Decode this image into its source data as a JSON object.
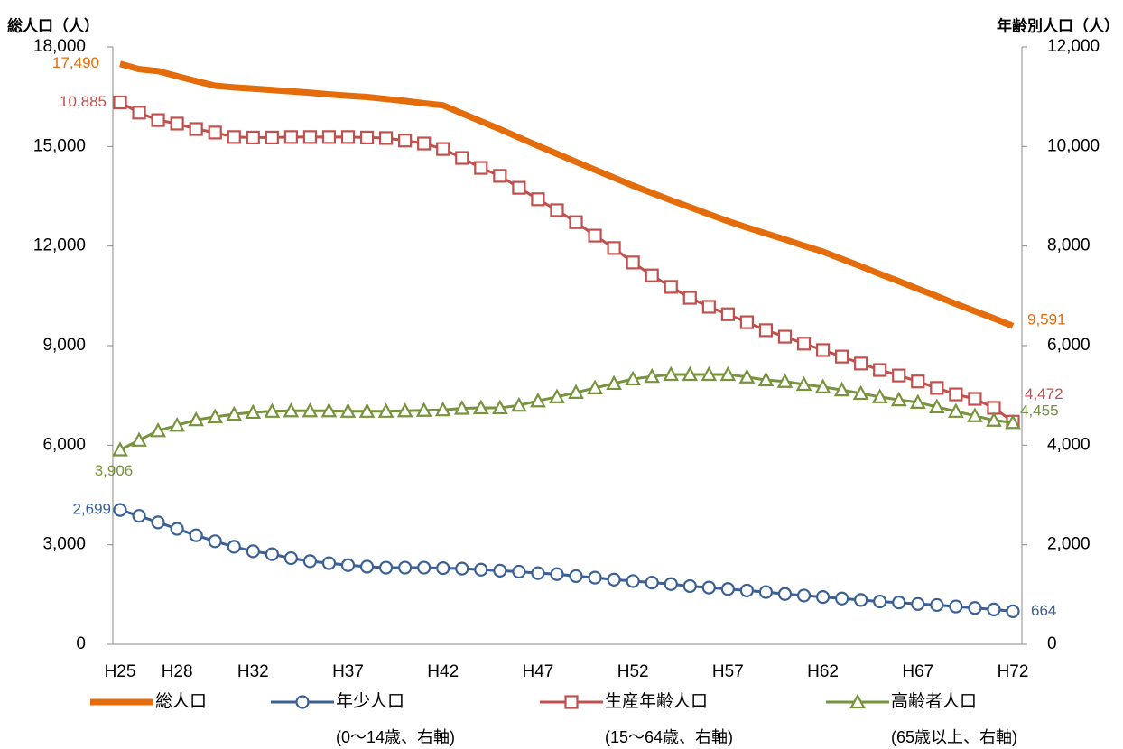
{
  "chart_data": {
    "type": "line",
    "y_label": "総人口（人）",
    "y2_label": "年齢別人口（人）",
    "categories": [
      "H25",
      null,
      null,
      "H28",
      null,
      null,
      null,
      "H32",
      null,
      null,
      null,
      null,
      "H37",
      null,
      null,
      null,
      null,
      "H42",
      null,
      null,
      null,
      null,
      "H47",
      null,
      null,
      null,
      null,
      "H52",
      null,
      null,
      null,
      null,
      "H57",
      null,
      null,
      null,
      null,
      "H62",
      null,
      null,
      null,
      null,
      "H67",
      null,
      null,
      null,
      null,
      "H72"
    ],
    "ylim": [
      0,
      18000
    ],
    "yticks": [
      0,
      {
        "value": 3000,
        "label": "3,000"
      },
      {
        "value": 6000,
        "label": "6,000"
      },
      {
        "value": 9000,
        "label": "9,000"
      },
      {
        "value": 12000,
        "label": "12,000"
      },
      {
        "value": 15000,
        "label": "15,000"
      },
      {
        "value": 18000,
        "label": "18,000"
      }
    ],
    "y2lim": [
      0,
      12000
    ],
    "y2ticks": [
      0,
      {
        "value": 2000,
        "label": "2,000"
      },
      {
        "value": 4000,
        "label": "4,000"
      },
      {
        "value": 6000,
        "label": "6,000"
      },
      {
        "value": 8000,
        "label": "8,000"
      },
      {
        "value": 10000,
        "label": "10,000"
      },
      {
        "value": 12000,
        "label": "12,000"
      }
    ],
    "grid": false,
    "legend": "bottom",
    "series": [
      {
        "name": "総人口",
        "color": "#e46c0a",
        "marker": "none",
        "values": [
          17490,
          17330,
          17270,
          17120,
          16970,
          16830,
          16780,
          16740,
          16700,
          16660,
          16620,
          16570,
          16530,
          16490,
          16430,
          16370,
          16300,
          16240,
          16000,
          15760,
          15520,
          15270,
          15020,
          14780,
          14540,
          14300,
          14060,
          13820,
          13600,
          13380,
          13170,
          12960,
          12750,
          12560,
          12380,
          12200,
          12010,
          11830,
          11610,
          11390,
          11160,
          10940,
          10710,
          10490,
          10260,
          10040,
          9820,
          9591
        ],
        "value_labels": [
          "17,490",
          null,
          null,
          null,
          null,
          null,
          null,
          null,
          null,
          null,
          null,
          null,
          null,
          null,
          null,
          null,
          null,
          null,
          null,
          null,
          null,
          null,
          null,
          null,
          null,
          null,
          null,
          null,
          null,
          null,
          null,
          null,
          null,
          null,
          null,
          null,
          null,
          null,
          null,
          null,
          null,
          null,
          null,
          null,
          null,
          null,
          null,
          "9,591"
        ]
      },
      {
        "name": "年少人口",
        "legend_note": "(0〜14歳、右軸)",
        "color": "#3a6096",
        "marker": "circle",
        "axis": "y2",
        "values": [
          2699,
          2580,
          2450,
          2320,
          2190,
          2070,
          1960,
          1870,
          1810,
          1730,
          1670,
          1630,
          1590,
          1560,
          1540,
          1540,
          1540,
          1530,
          1520,
          1500,
          1480,
          1460,
          1430,
          1410,
          1370,
          1340,
          1300,
          1270,
          1240,
          1210,
          1170,
          1140,
          1110,
          1080,
          1050,
          1010,
          980,
          950,
          920,
          890,
          860,
          840,
          810,
          790,
          760,
          730,
          700,
          664
        ],
        "value_labels": [
          "2,699",
          null,
          null,
          null,
          null,
          null,
          null,
          null,
          null,
          null,
          null,
          null,
          null,
          null,
          null,
          null,
          null,
          null,
          null,
          null,
          null,
          null,
          null,
          null,
          null,
          null,
          null,
          null,
          null,
          null,
          null,
          null,
          null,
          null,
          null,
          null,
          null,
          null,
          null,
          null,
          null,
          null,
          null,
          null,
          null,
          null,
          null,
          "664"
        ]
      },
      {
        "name": "生産年齢人口",
        "legend_note": "(15〜64歳、右軸)",
        "color": "#c0504d",
        "marker": "square",
        "axis": "y2",
        "values": [
          10885,
          10680,
          10530,
          10460,
          10350,
          10280,
          10190,
          10180,
          10180,
          10190,
          10190,
          10190,
          10190,
          10180,
          10170,
          10120,
          10060,
          9950,
          9770,
          9570,
          9410,
          9170,
          8940,
          8720,
          8480,
          8210,
          7960,
          7670,
          7410,
          7180,
          6960,
          6780,
          6630,
          6470,
          6310,
          6180,
          6040,
          5910,
          5780,
          5640,
          5510,
          5400,
          5280,
          5150,
          5020,
          4930,
          4750,
          4472
        ],
        "value_labels": [
          "10,885",
          null,
          null,
          null,
          null,
          null,
          null,
          null,
          null,
          null,
          null,
          null,
          null,
          null,
          null,
          null,
          null,
          null,
          null,
          null,
          null,
          null,
          null,
          null,
          null,
          null,
          null,
          null,
          null,
          null,
          null,
          null,
          null,
          null,
          null,
          null,
          null,
          null,
          null,
          null,
          null,
          null,
          null,
          null,
          null,
          null,
          null,
          "4,472"
        ]
      },
      {
        "name": "高齢者人口",
        "legend_note": "(65歳以上、右軸)",
        "color": "#77933c",
        "marker": "triangle",
        "axis": "y2",
        "values": [
          3906,
          4100,
          4290,
          4400,
          4510,
          4570,
          4620,
          4660,
          4680,
          4690,
          4690,
          4690,
          4680,
          4680,
          4680,
          4690,
          4700,
          4710,
          4740,
          4750,
          4750,
          4800,
          4890,
          4970,
          5060,
          5150,
          5240,
          5330,
          5380,
          5420,
          5420,
          5420,
          5420,
          5370,
          5310,
          5280,
          5220,
          5170,
          5110,
          5040,
          4970,
          4910,
          4860,
          4770,
          4680,
          4590,
          4500,
          4455
        ],
        "value_labels": [
          "3,906",
          null,
          null,
          null,
          null,
          null,
          null,
          null,
          null,
          null,
          null,
          null,
          null,
          null,
          null,
          null,
          null,
          null,
          null,
          null,
          null,
          null,
          null,
          null,
          null,
          null,
          null,
          null,
          null,
          null,
          null,
          null,
          null,
          null,
          null,
          null,
          null,
          null,
          null,
          null,
          null,
          null,
          null,
          null,
          null,
          null,
          null,
          "4,455"
        ]
      }
    ]
  }
}
